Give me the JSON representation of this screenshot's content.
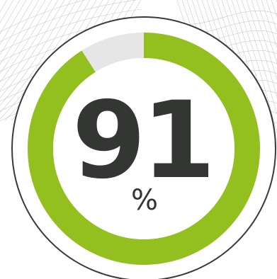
{
  "gauge": {
    "value": "91",
    "unit": "%",
    "progress_fraction": 0.91,
    "colors": {
      "progress": "#93c01f",
      "track": "#e6e6e6",
      "text": "#333633",
      "outline": "#3a3a3a",
      "background_mesh": "#c8c8c8"
    }
  }
}
